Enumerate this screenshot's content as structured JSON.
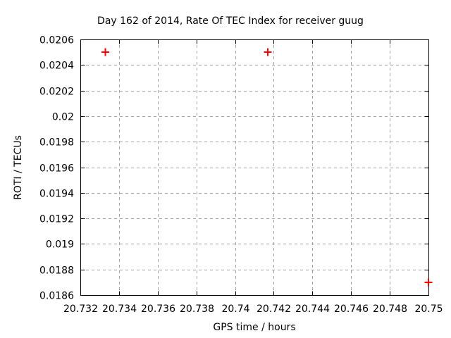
{
  "page": {
    "background": "#ffffff"
  },
  "chart_data": {
    "type": "scatter",
    "title": "Day 162 of 2014, Rate Of TEC Index for receiver guug",
    "xlabel": "GPS time / hours",
    "ylabel": "ROTI / TECUs",
    "xlim": [
      20.732,
      20.75
    ],
    "ylim": [
      0.0186,
      0.0206
    ],
    "x_ticks": [
      20.732,
      20.734,
      20.736,
      20.738,
      20.74,
      20.742,
      20.744,
      20.746,
      20.748,
      20.75
    ],
    "x_tick_labels": [
      "20.732",
      "20.734",
      "20.736",
      "20.738",
      "20.74",
      "20.742",
      "20.744",
      "20.746",
      "20.748",
      "20.75"
    ],
    "y_ticks": [
      0.0186,
      0.0188,
      0.019,
      0.0192,
      0.0194,
      0.0196,
      0.0198,
      0.02,
      0.0202,
      0.0204,
      0.0206
    ],
    "y_tick_labels": [
      "0.0186",
      "0.0188",
      "0.019",
      "0.0192",
      "0.0194",
      "0.0196",
      "0.0198",
      "0.02",
      "0.0202",
      "0.0204",
      "0.0206"
    ],
    "grid": {
      "visible": true,
      "style": "dashed",
      "color": "#a0a0a0"
    },
    "legend_position": "none",
    "series": [
      {
        "name": "",
        "marker": "plus",
        "color": "#ff0000",
        "points": [
          {
            "x": 20.7333,
            "y": 0.0205
          },
          {
            "x": 20.7417,
            "y": 0.0205
          },
          {
            "x": 20.75,
            "y": 0.0187
          }
        ]
      }
    ],
    "colors": {
      "background": "#ffffff",
      "border": "#000000",
      "text": "#000000"
    }
  }
}
